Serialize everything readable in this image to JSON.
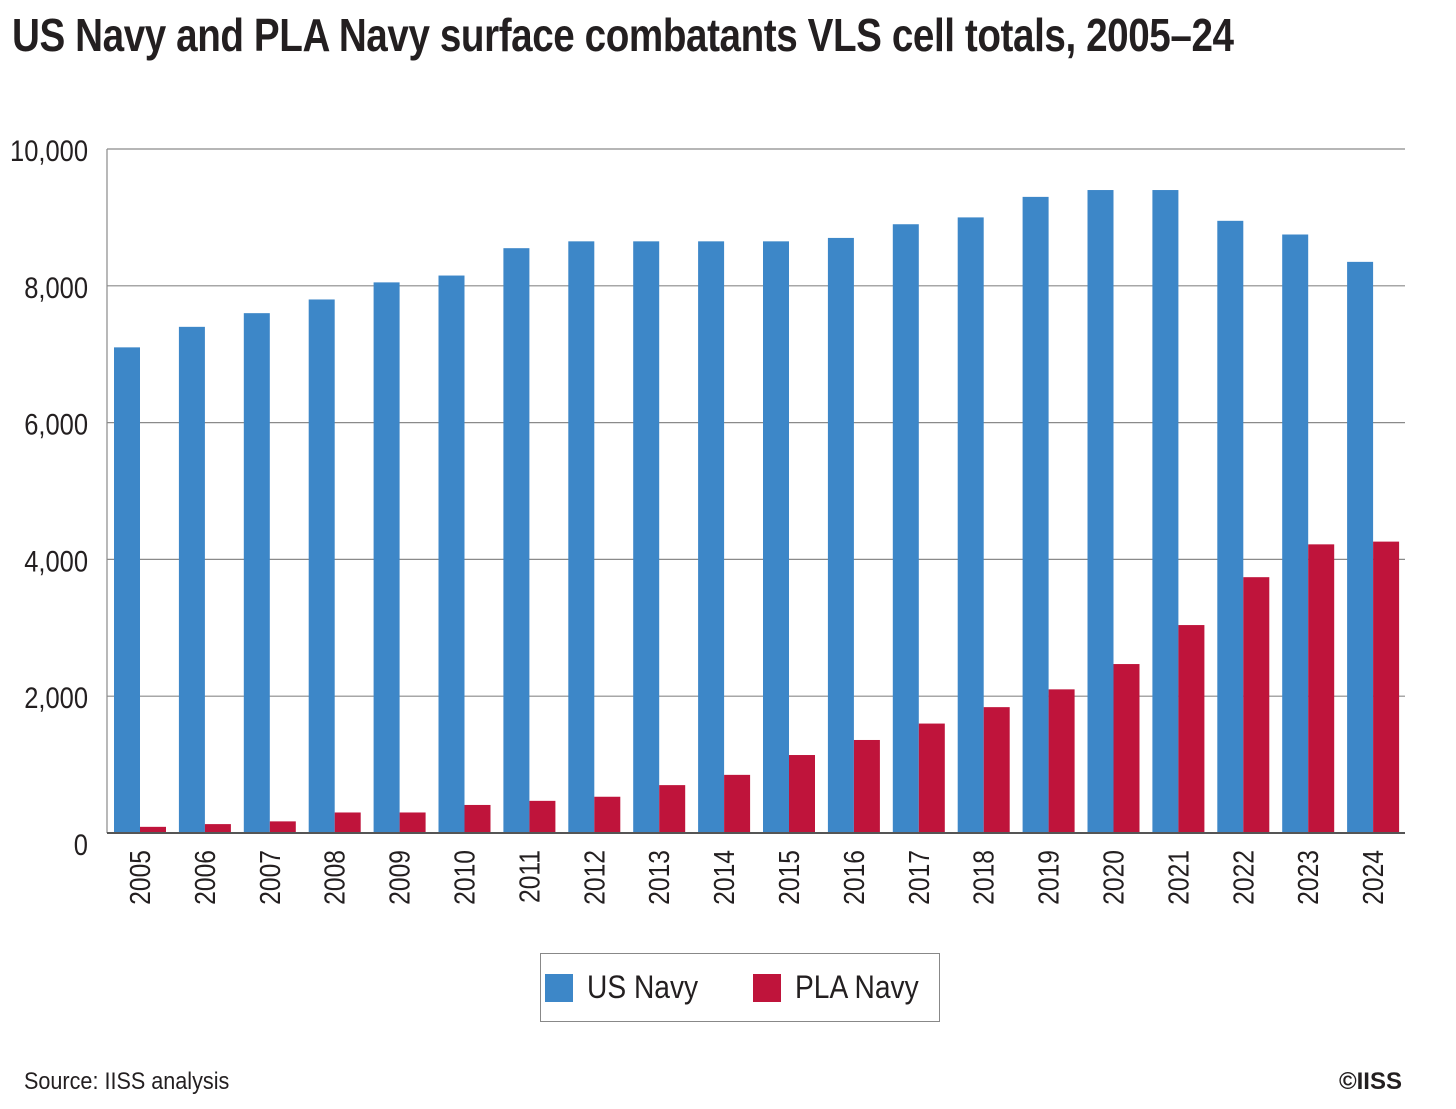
{
  "chart_data": {
    "type": "bar",
    "title": "US Navy and PLA Navy surface combatants VLS cell totals, 2005–24",
    "xlabel": "",
    "ylabel": "",
    "ylim": [
      0,
      10000
    ],
    "yticks": [
      "0",
      "2,000",
      "4,000",
      "6,000",
      "8,000",
      "10,000"
    ],
    "ytick_values": [
      0,
      2000,
      4000,
      6000,
      8000,
      10000
    ],
    "grid": true,
    "categories": [
      "2005",
      "2006",
      "2007",
      "2008",
      "2009",
      "2010",
      "2011",
      "2012",
      "2013",
      "2014",
      "2015",
      "2016",
      "2017",
      "2018",
      "2019",
      "2020",
      "2021",
      "2022",
      "2023",
      "2024"
    ],
    "series": [
      {
        "name": "US Navy",
        "color": "#3d87c8",
        "values": [
          7100,
          7400,
          7600,
          7800,
          8050,
          8150,
          8550,
          8650,
          8650,
          8650,
          8650,
          8700,
          8900,
          9000,
          9300,
          9400,
          9400,
          8950,
          8750,
          8350
        ]
      },
      {
        "name": "PLA Navy",
        "color": "#bf143b",
        "values": [
          90,
          130,
          170,
          300,
          300,
          410,
          470,
          530,
          700,
          850,
          1140,
          1360,
          1600,
          1840,
          2100,
          2470,
          3040,
          3740,
          4220,
          4260
        ]
      }
    ],
    "legend": "bottom-center",
    "source": "Source: IISS analysis",
    "copyright": "©IISS"
  }
}
